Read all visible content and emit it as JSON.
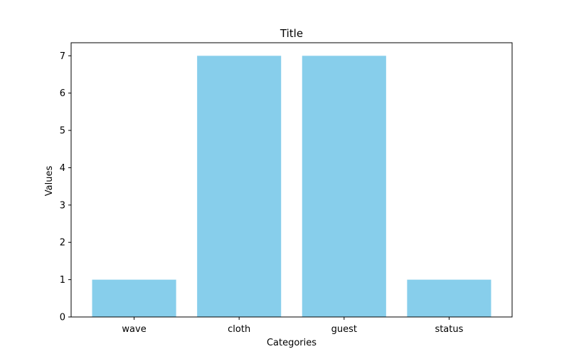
{
  "chart_data": {
    "type": "bar",
    "title": "Title",
    "xlabel": "Categories",
    "ylabel": "Values",
    "categories": [
      "wave",
      "cloth",
      "guest",
      "status"
    ],
    "values": [
      1,
      7,
      7,
      1
    ],
    "ylim": [
      0,
      7.35
    ],
    "yticks": [
      0,
      1,
      2,
      3,
      4,
      5,
      6,
      7
    ],
    "grid": false,
    "bar_color": "#87CEEB"
  }
}
